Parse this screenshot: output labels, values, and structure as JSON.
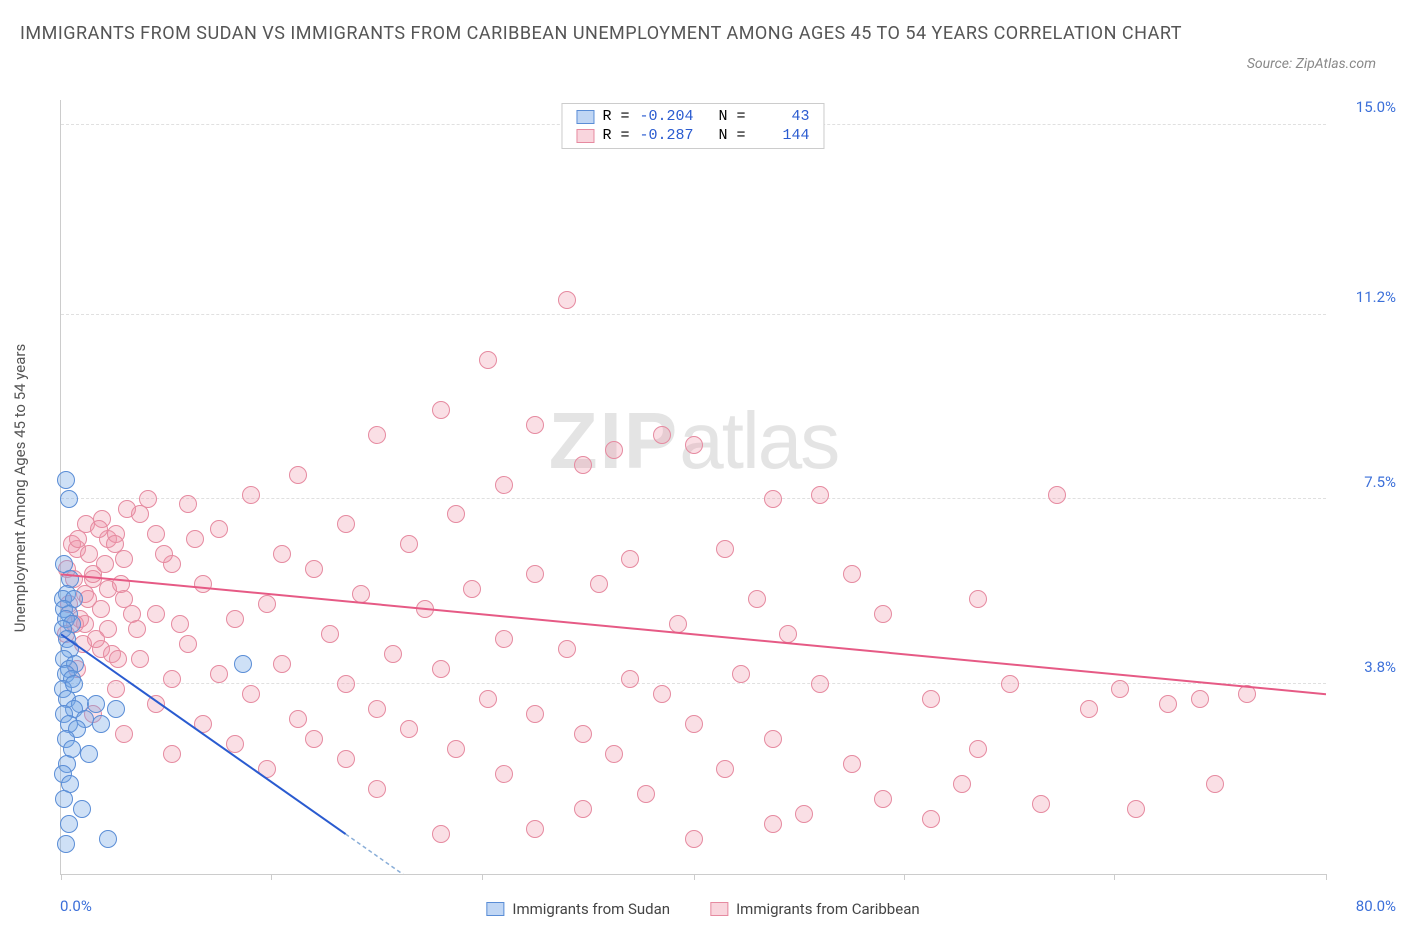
{
  "title": "IMMIGRANTS FROM SUDAN VS IMMIGRANTS FROM CARIBBEAN UNEMPLOYMENT AMONG AGES 45 TO 54 YEARS CORRELATION CHART",
  "source": "Source: ZipAtlas.com",
  "ylabel": "Unemployment Among Ages 45 to 54 years",
  "watermark_zip": "ZIP",
  "watermark_atlas": "atlas",
  "chart": {
    "type": "scatter",
    "xlim": [
      0,
      80
    ],
    "ylim": [
      0,
      15.5
    ],
    "yticks": [
      {
        "v": 3.8,
        "label": "3.8%"
      },
      {
        "v": 7.5,
        "label": "7.5%"
      },
      {
        "v": 11.2,
        "label": "11.2%"
      },
      {
        "v": 15.0,
        "label": "15.0%"
      }
    ],
    "xtick_positions": [
      0,
      13.3,
      26.6,
      40,
      53.3,
      66.6,
      80
    ],
    "xmin_label": "0.0%",
    "xmax_label": "80.0%",
    "grid_color": "#e0e0e0",
    "background_color": "#ffffff",
    "marker_radius": 9
  },
  "stats": {
    "rows": [
      {
        "swatch": "blue",
        "R_label": "R =",
        "R": "-0.204",
        "N_label": "N =",
        "N": "43"
      },
      {
        "swatch": "pink",
        "R_label": "R =",
        "R": "-0.287",
        "N_label": "N =",
        "N": "144"
      }
    ]
  },
  "legend": {
    "blue_label": "Immigrants from Sudan",
    "pink_label": "Immigrants from Caribbean"
  },
  "series": {
    "blue": {
      "color_fill": "rgba(115,165,230,0.35)",
      "color_stroke": "#5a8dd6",
      "trend": {
        "x1": 0,
        "y1": 4.8,
        "x2": 18,
        "y2": 0.8,
        "solid_to_x": 18,
        "dash_to_x": 30,
        "color": "#2a5bd0",
        "width": 2
      },
      "points": [
        [
          0.3,
          7.9
        ],
        [
          0.5,
          7.5
        ],
        [
          0.2,
          6.2
        ],
        [
          0.6,
          5.9
        ],
        [
          0.4,
          5.6
        ],
        [
          0.1,
          5.5
        ],
        [
          0.8,
          5.5
        ],
        [
          0.2,
          5.3
        ],
        [
          0.5,
          5.2
        ],
        [
          0.3,
          5.1
        ],
        [
          0.7,
          5.0
        ],
        [
          0.1,
          4.9
        ],
        [
          0.4,
          4.7
        ],
        [
          0.6,
          4.5
        ],
        [
          0.2,
          4.3
        ],
        [
          0.9,
          4.2
        ],
        [
          0.5,
          4.1
        ],
        [
          0.3,
          4.0
        ],
        [
          0.7,
          3.9
        ],
        [
          0.1,
          3.7
        ],
        [
          0.4,
          3.5
        ],
        [
          1.2,
          3.4
        ],
        [
          0.8,
          3.3
        ],
        [
          0.2,
          3.2
        ],
        [
          1.5,
          3.1
        ],
        [
          0.5,
          3.0
        ],
        [
          1.0,
          2.9
        ],
        [
          2.5,
          3.0
        ],
        [
          0.3,
          2.7
        ],
        [
          0.7,
          2.5
        ],
        [
          1.8,
          2.4
        ],
        [
          0.4,
          2.2
        ],
        [
          0.1,
          2.0
        ],
        [
          2.2,
          3.4
        ],
        [
          0.6,
          1.8
        ],
        [
          3.5,
          3.3
        ],
        [
          0.2,
          1.5
        ],
        [
          1.3,
          1.3
        ],
        [
          0.5,
          1.0
        ],
        [
          11.5,
          4.2
        ],
        [
          0.3,
          0.6
        ],
        [
          3.0,
          0.7
        ],
        [
          0.8,
          3.8
        ]
      ]
    },
    "pink": {
      "color_fill": "rgba(240,150,170,0.3)",
      "color_stroke": "#e68aa0",
      "trend": {
        "x1": 0,
        "y1": 6.0,
        "x2": 80,
        "y2": 3.6,
        "color": "#e65a85",
        "width": 2
      },
      "points": [
        [
          32,
          11.5
        ],
        [
          27,
          10.3
        ],
        [
          24,
          9.3
        ],
        [
          30,
          9.0
        ],
        [
          35,
          8.5
        ],
        [
          20,
          8.8
        ],
        [
          40,
          8.6
        ],
        [
          33,
          8.2
        ],
        [
          28,
          7.8
        ],
        [
          15,
          8.0
        ],
        [
          45,
          7.5
        ],
        [
          12,
          7.6
        ],
        [
          8,
          7.4
        ],
        [
          5,
          7.2
        ],
        [
          18,
          7.0
        ],
        [
          38,
          8.8
        ],
        [
          25,
          7.2
        ],
        [
          10,
          6.9
        ],
        [
          6,
          6.8
        ],
        [
          3,
          6.7
        ],
        [
          22,
          6.6
        ],
        [
          42,
          6.5
        ],
        [
          14,
          6.4
        ],
        [
          48,
          7.6
        ],
        [
          7,
          6.2
        ],
        [
          16,
          6.1
        ],
        [
          30,
          6.0
        ],
        [
          36,
          6.3
        ],
        [
          2,
          5.9
        ],
        [
          9,
          5.8
        ],
        [
          26,
          5.7
        ],
        [
          19,
          5.6
        ],
        [
          4,
          5.5
        ],
        [
          13,
          5.4
        ],
        [
          23,
          5.3
        ],
        [
          44,
          5.5
        ],
        [
          6,
          5.2
        ],
        [
          34,
          5.8
        ],
        [
          11,
          5.1
        ],
        [
          1.5,
          5.0
        ],
        [
          50,
          6.0
        ],
        [
          3,
          4.9
        ],
        [
          17,
          4.8
        ],
        [
          28,
          4.7
        ],
        [
          8,
          4.6
        ],
        [
          39,
          5.0
        ],
        [
          2.5,
          4.5
        ],
        [
          21,
          4.4
        ],
        [
          46,
          4.8
        ],
        [
          5,
          4.3
        ],
        [
          14,
          4.2
        ],
        [
          32,
          4.5
        ],
        [
          1,
          4.1
        ],
        [
          10,
          4.0
        ],
        [
          24,
          4.1
        ],
        [
          52,
          5.2
        ],
        [
          7,
          3.9
        ],
        [
          18,
          3.8
        ],
        [
          36,
          3.9
        ],
        [
          3.5,
          3.7
        ],
        [
          12,
          3.6
        ],
        [
          27,
          3.5
        ],
        [
          43,
          4.0
        ],
        [
          58,
          5.5
        ],
        [
          6,
          3.4
        ],
        [
          20,
          3.3
        ],
        [
          38,
          3.6
        ],
        [
          2,
          3.2
        ],
        [
          15,
          3.1
        ],
        [
          30,
          3.2
        ],
        [
          48,
          3.8
        ],
        [
          63,
          7.6
        ],
        [
          9,
          3.0
        ],
        [
          22,
          2.9
        ],
        [
          40,
          3.0
        ],
        [
          55,
          3.5
        ],
        [
          4,
          2.8
        ],
        [
          16,
          2.7
        ],
        [
          33,
          2.8
        ],
        [
          67,
          3.7
        ],
        [
          11,
          2.6
        ],
        [
          25,
          2.5
        ],
        [
          45,
          2.7
        ],
        [
          60,
          3.8
        ],
        [
          72,
          3.5
        ],
        [
          7,
          2.4
        ],
        [
          18,
          2.3
        ],
        [
          35,
          2.4
        ],
        [
          50,
          2.2
        ],
        [
          65,
          3.3
        ],
        [
          13,
          2.1
        ],
        [
          28,
          2.0
        ],
        [
          42,
          2.1
        ],
        [
          57,
          1.8
        ],
        [
          70,
          3.4
        ],
        [
          75,
          3.6
        ],
        [
          20,
          1.7
        ],
        [
          37,
          1.6
        ],
        [
          52,
          1.5
        ],
        [
          62,
          1.4
        ],
        [
          30,
          0.9
        ],
        [
          47,
          1.2
        ],
        [
          24,
          0.8
        ],
        [
          55,
          1.1
        ],
        [
          68,
          1.3
        ],
        [
          40,
          0.7
        ],
        [
          73,
          1.8
        ],
        [
          33,
          1.3
        ],
        [
          45,
          1.0
        ],
        [
          58,
          2.5
        ],
        [
          1,
          6.5
        ],
        [
          2,
          6.0
        ],
        [
          3,
          5.7
        ],
        [
          4,
          6.3
        ],
        [
          1.5,
          5.6
        ],
        [
          2.5,
          5.3
        ],
        [
          0.8,
          5.9
        ],
        [
          1.2,
          5.1
        ],
        [
          3.5,
          6.8
        ],
        [
          0.5,
          5.4
        ],
        [
          2.2,
          4.7
        ],
        [
          1.8,
          6.4
        ],
        [
          4.5,
          5.2
        ],
        [
          0.3,
          4.8
        ],
        [
          3.2,
          4.4
        ],
        [
          1.6,
          7.0
        ],
        [
          2.8,
          6.2
        ],
        [
          0.7,
          6.6
        ],
        [
          4.2,
          7.3
        ],
        [
          1.4,
          4.6
        ],
        [
          3.8,
          5.8
        ],
        [
          0.4,
          6.1
        ],
        [
          2.6,
          7.1
        ],
        [
          1.1,
          6.7
        ],
        [
          3.6,
          4.3
        ],
        [
          0.9,
          5.0
        ],
        [
          2.4,
          6.9
        ],
        [
          4.8,
          4.9
        ],
        [
          1.7,
          5.5
        ],
        [
          3.4,
          6.6
        ],
        [
          5.5,
          7.5
        ],
        [
          6.5,
          6.4
        ],
        [
          7.5,
          5.0
        ],
        [
          8.5,
          6.7
        ]
      ]
    }
  }
}
